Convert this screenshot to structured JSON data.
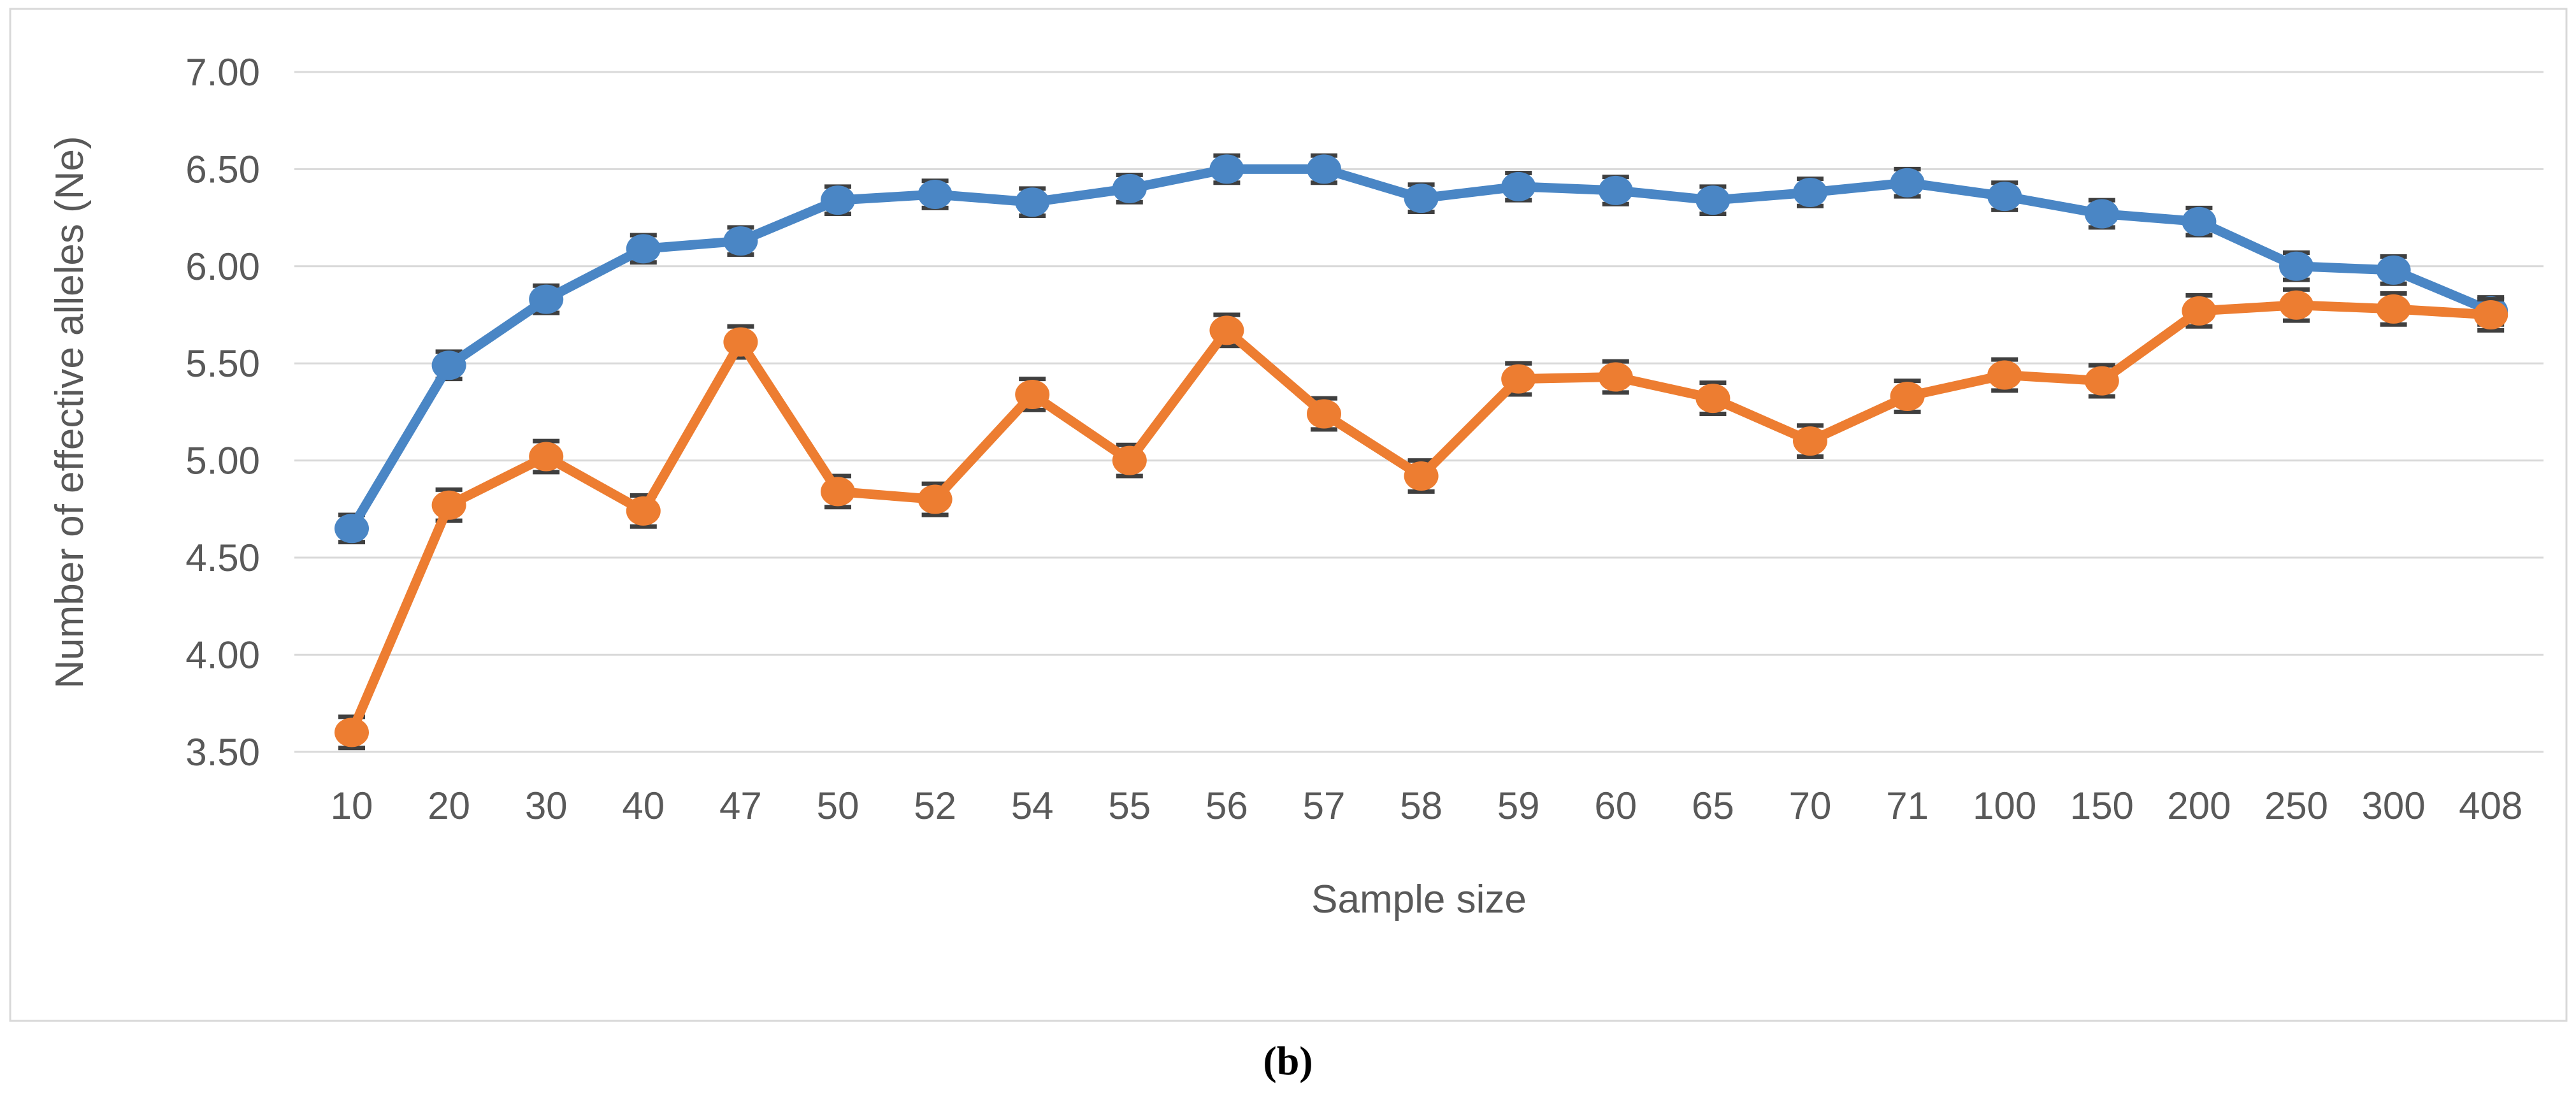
{
  "figure": {
    "caption": "(b)"
  },
  "chart_data": {
    "type": "line",
    "title": "",
    "xlabel": "Sample size",
    "ylabel": "Number of effective alleles (Ne)",
    "categories": [
      "10",
      "20",
      "30",
      "40",
      "47",
      "50",
      "52",
      "54",
      "55",
      "56",
      "57",
      "58",
      "59",
      "60",
      "65",
      "70",
      "71",
      "100",
      "150",
      "200",
      "250",
      "300",
      "408"
    ],
    "series": [
      {
        "name": "blue-series",
        "color": "#4a86c5",
        "values": [
          4.65,
          5.49,
          5.83,
          6.09,
          6.13,
          6.34,
          6.37,
          6.33,
          6.4,
          6.5,
          6.5,
          6.35,
          6.41,
          6.39,
          6.34,
          6.38,
          6.43,
          6.36,
          6.27,
          6.23,
          6.0,
          5.98,
          5.77
        ],
        "error": 0.07
      },
      {
        "name": "orange-series",
        "color": "#ed7d31",
        "values": [
          3.6,
          4.77,
          5.02,
          4.74,
          5.61,
          4.84,
          4.8,
          5.34,
          5.0,
          5.67,
          5.24,
          4.92,
          5.42,
          5.43,
          5.32,
          5.1,
          5.33,
          5.44,
          5.41,
          5.77,
          5.8,
          5.78,
          5.75
        ],
        "error": 0.08
      }
    ],
    "ylim": [
      3.5,
      7.0
    ],
    "ytick_step": 0.5,
    "ytick_labels": [
      "3.50",
      "4.00",
      "4.50",
      "5.00",
      "5.50",
      "6.00",
      "6.50",
      "7.00"
    ],
    "grid": true,
    "legend_position": "none",
    "error_bar_color": "#3f3f3f",
    "gridline_color": "#d9d9d9",
    "panel_border_color": "#d8d8d8",
    "axis_text_color": "#595959"
  }
}
